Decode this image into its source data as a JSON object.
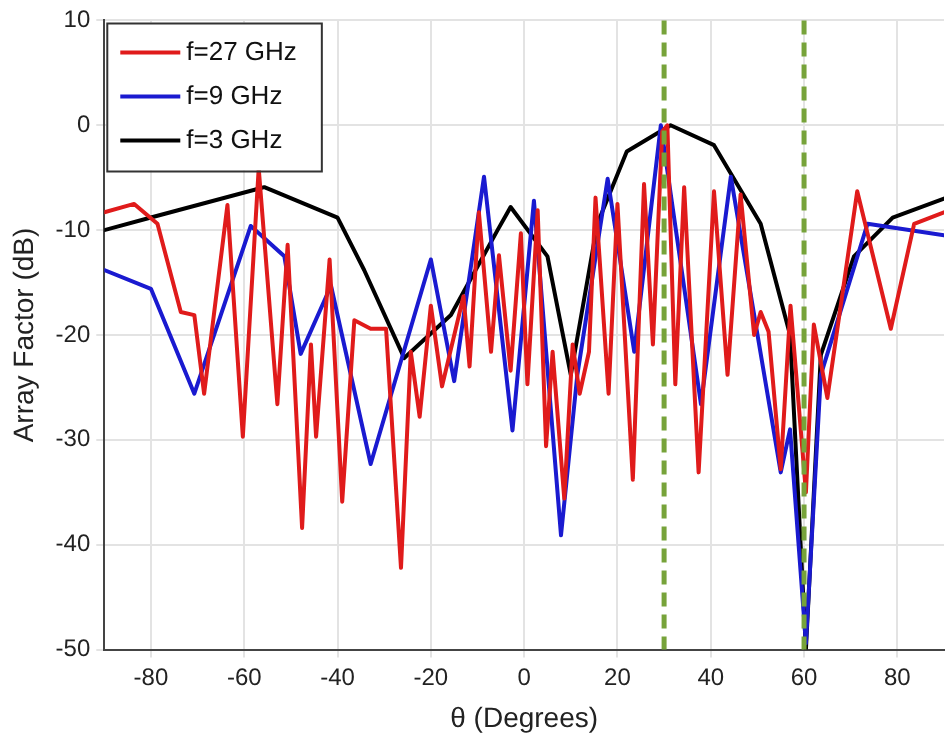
{
  "chart_data": {
    "type": "line",
    "xlabel": "θ (Degrees)",
    "ylabel": "Array Factor (dB)",
    "xlim": [
      -90,
      90
    ],
    "xticks": [
      -80,
      -60,
      -40,
      -20,
      0,
      20,
      40,
      60,
      80
    ],
    "ylim": [
      -50,
      10
    ],
    "yticks": [
      -50,
      -40,
      -30,
      -20,
      -10,
      0,
      10
    ],
    "grid": true,
    "legend": "top left",
    "marker": "none",
    "line_style": "solid",
    "series": [
      {
        "name": "f=27 GHz",
        "color": "#e01b1b",
        "x": [
          -90,
          -83.6,
          -78.6,
          -73.6,
          -70.7,
          -68.6,
          -63.6,
          -60.3,
          -56.9,
          -52.9,
          -50.7,
          -47.6,
          -45.7,
          -44.6,
          -41.7,
          -39,
          -36.4,
          -32.9,
          -29.6,
          -26.4,
          -24.3,
          -22.4,
          -20,
          -17.6,
          -13,
          -11.7,
          -9.7,
          -7.1,
          -5.4,
          -2.9,
          -0.7,
          0.7,
          2.9,
          4.7,
          6.1,
          8.6,
          10.4,
          11.9,
          13.9,
          15.3,
          18.1,
          20,
          23.3,
          25.7,
          27.6,
          29.6,
          30.7,
          32.4,
          34.3,
          37.4,
          40.7,
          43.6,
          46.4,
          49.3,
          50.7,
          52.4,
          55,
          57.1,
          60.4,
          62.1,
          65,
          71.4,
          78.6,
          83.6,
          90
        ],
        "values": [
          -8.3,
          -7.5,
          -9.4,
          -17.8,
          -18.1,
          -25.6,
          -7.6,
          -29.7,
          -4.1,
          -26.6,
          -11.4,
          -38.4,
          -20.9,
          -29.7,
          -12.8,
          -35.9,
          -18.6,
          -19.4,
          -19.4,
          -42.2,
          -21.6,
          -27.8,
          -17.2,
          -24.9,
          -16.3,
          -23,
          -8.3,
          -21.6,
          -12.4,
          -23.4,
          -10.3,
          -24.7,
          -8.1,
          -30.6,
          -21.6,
          -35.6,
          -20.9,
          -25.6,
          -21.6,
          -6.9,
          -25.6,
          -7.5,
          -33.8,
          -5.6,
          -20.9,
          -0.6,
          0,
          -24.7,
          -5.9,
          -33.1,
          -6.3,
          -23.8,
          -6.6,
          -20,
          -17.8,
          -19.7,
          -32.8,
          -17.2,
          -35,
          -19,
          -26,
          -6.3,
          -19.4,
          -9.4,
          -8.3
        ]
      },
      {
        "name": "f=9 GHz",
        "color": "#1a1ad0",
        "x": [
          -90,
          -80,
          -70.7,
          -58.6,
          -51.4,
          -47.9,
          -41.4,
          -32.9,
          -20,
          -15,
          -8.6,
          -2.5,
          2.1,
          7.9,
          11.4,
          17.9,
          23.6,
          29.3,
          37.9,
          44.3,
          55,
          57,
          60.4,
          63.6,
          73.6,
          90
        ],
        "values": [
          -13.8,
          -15.6,
          -25.6,
          -9.6,
          -12.5,
          -21.8,
          -15.3,
          -32.3,
          -12.8,
          -24.4,
          -4.9,
          -29.1,
          -7.2,
          -39.1,
          -23.8,
          -5.1,
          -21.6,
          0,
          -26.6,
          -4.9,
          -33.1,
          -29,
          -49.4,
          -23.8,
          -9.4,
          -10.5
        ]
      },
      {
        "name": "f=3 GHz",
        "color": "#000000",
        "x": [
          -90,
          -80,
          -55.7,
          -40,
          -34.3,
          -25.7,
          -15.7,
          -5.7,
          -2.9,
          5,
          10,
          15.7,
          22,
          31.4,
          40.7,
          50.7,
          57,
          60.4,
          63.6,
          70.7,
          79,
          90
        ],
        "values": [
          -10,
          -8.8,
          -5.9,
          -8.8,
          -13.8,
          -22.2,
          -18.1,
          -10,
          -7.8,
          -12.5,
          -23.8,
          -9.4,
          -2.5,
          0,
          -1.9,
          -9.4,
          -20,
          -50,
          -21.9,
          -12.5,
          -8.8,
          -7
        ]
      }
    ],
    "ref_lines": [
      {
        "axis": "x",
        "value": 30,
        "color": "#77a33a",
        "line_style": "dashed"
      },
      {
        "axis": "x",
        "value": 60,
        "color": "#77a33a",
        "line_style": "dashed"
      }
    ]
  }
}
